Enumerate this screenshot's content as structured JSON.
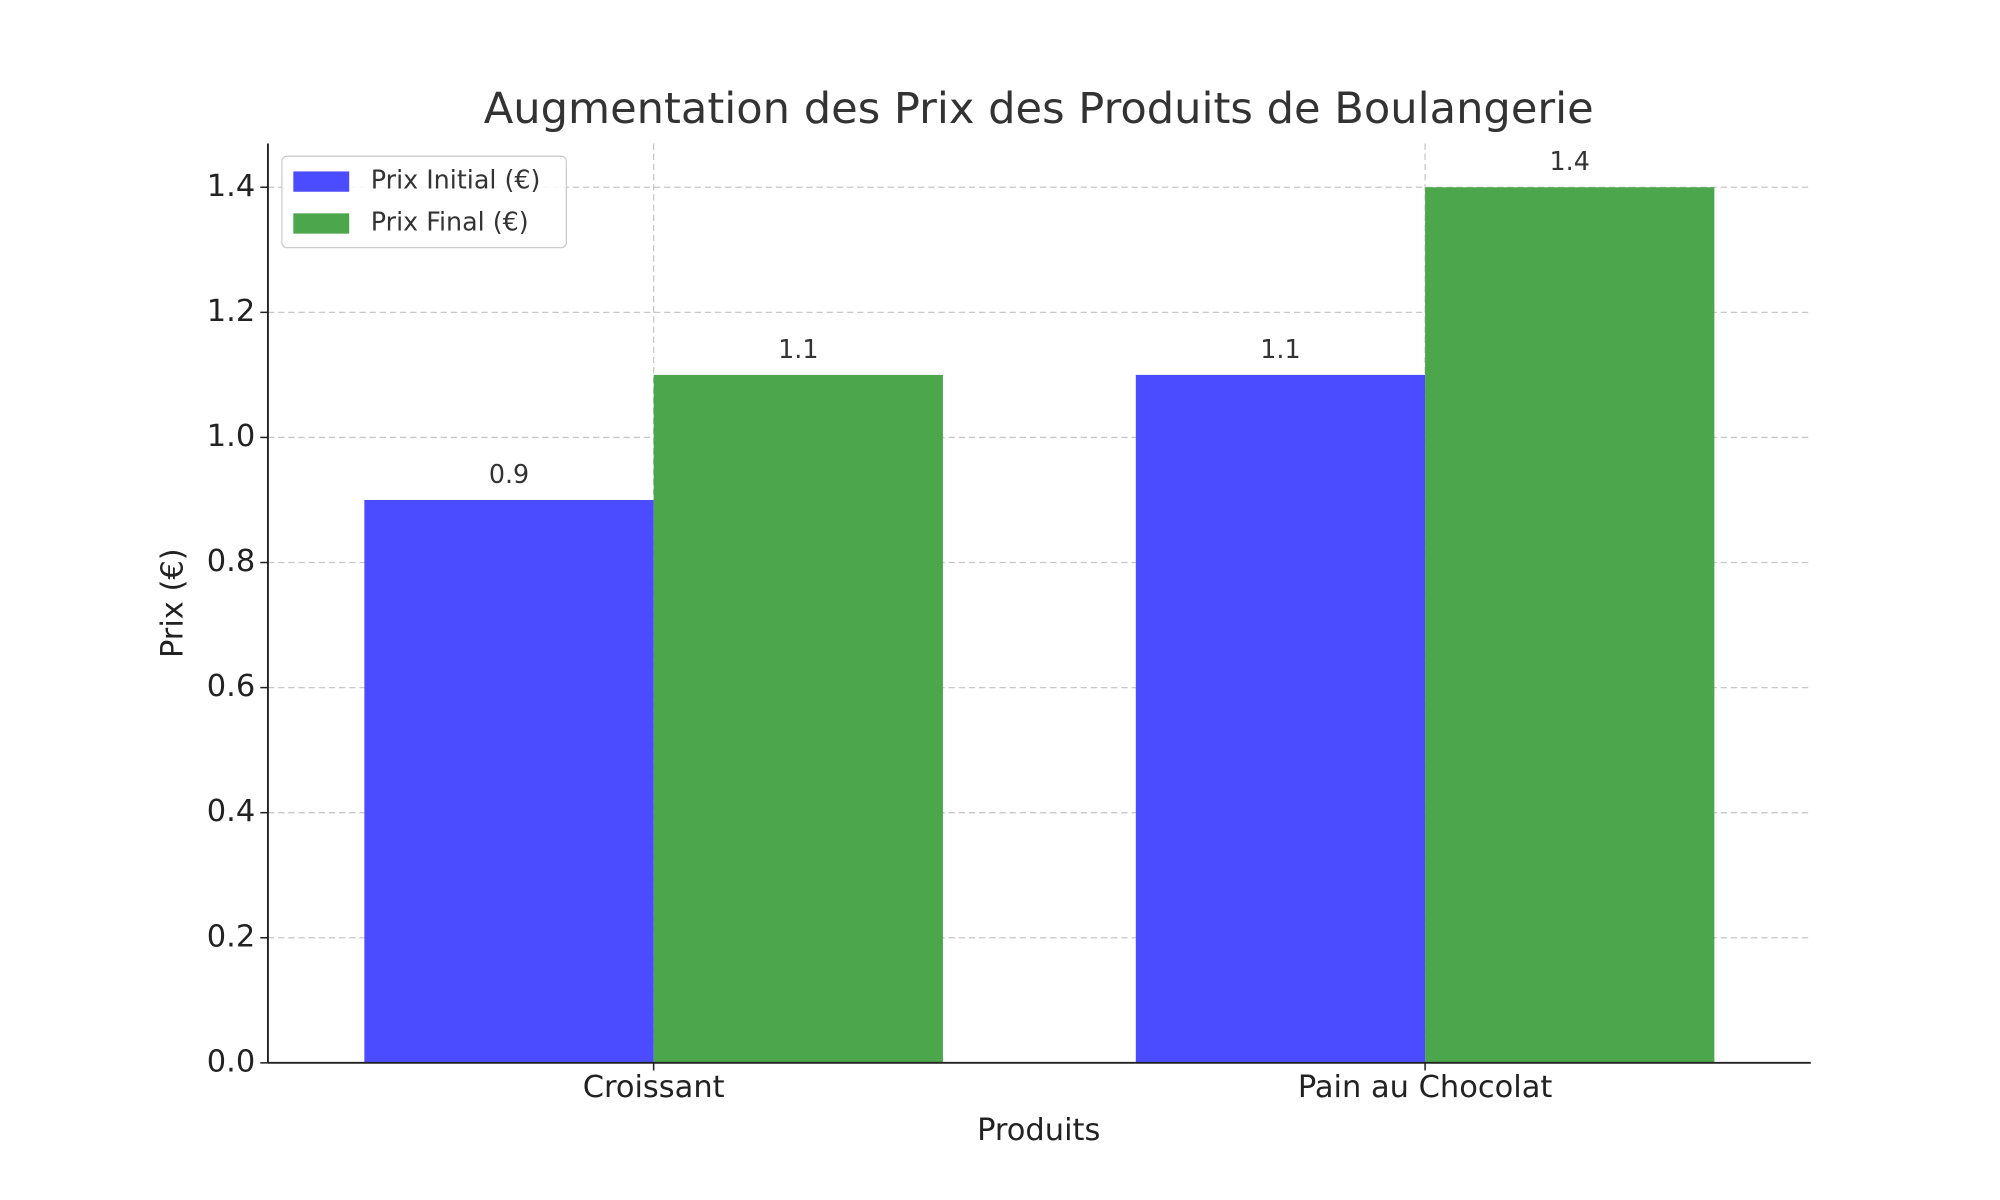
{
  "chart_data": {
    "type": "bar",
    "title": "Augmentation des Prix des Produits de Boulangerie",
    "x_label": "Produits",
    "y_label": "Prix (€)",
    "categories": [
      "Croissant",
      "Pain au Chocolat"
    ],
    "series": [
      {
        "name": "Prix Initial (€)",
        "color": "#4b4bff",
        "values": [
          0.9,
          1.1
        ]
      },
      {
        "name": "Prix Final (€)",
        "color": "#4ca64c",
        "values": [
          1.1,
          1.4
        ]
      }
    ],
    "ylim": [
      0,
      1.47
    ],
    "yticks": [
      {
        "value": 0,
        "label": "0.0"
      },
      0.2,
      0.4,
      0.6,
      0.8,
      {
        "value": 1,
        "label": "1.0"
      },
      1.2,
      1.4
    ],
    "grid": true,
    "legend": "upper-left"
  }
}
